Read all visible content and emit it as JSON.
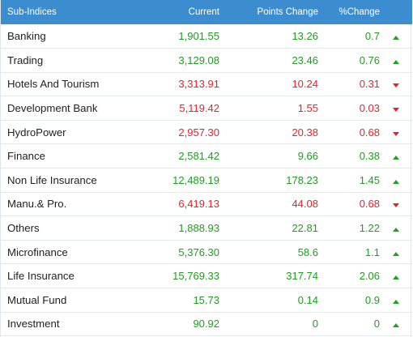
{
  "headers": {
    "name": "Sub-Indices",
    "current": "Current",
    "points": "Points Change",
    "pct": "%Change"
  },
  "colors": {
    "header_bg": "#3c8dcf",
    "up": "#1e9e1e",
    "down": "#e0242b"
  },
  "rows": [
    {
      "name": "Banking",
      "current": "1,901.55",
      "points": "13.26",
      "pct": "0.7",
      "trend": "up"
    },
    {
      "name": "Trading",
      "current": "3,129.08",
      "points": "23.46",
      "pct": "0.76",
      "trend": "up"
    },
    {
      "name": "Hotels And Tourism",
      "current": "3,313.91",
      "points": "10.24",
      "pct": "0.31",
      "trend": "down"
    },
    {
      "name": "Development Bank",
      "current": "5,119.42",
      "points": "1.55",
      "pct": "0.03",
      "trend": "down"
    },
    {
      "name": "HydroPower",
      "current": "2,957.30",
      "points": "20.38",
      "pct": "0.68",
      "trend": "down"
    },
    {
      "name": "Finance",
      "current": "2,581.42",
      "points": "9.66",
      "pct": "0.38",
      "trend": "up"
    },
    {
      "name": "Non Life Insurance",
      "current": "12,489.19",
      "points": "178.23",
      "pct": "1.45",
      "trend": "up"
    },
    {
      "name": "Manu.& Pro.",
      "current": "6,419.13",
      "points": "44.08",
      "pct": "0.68",
      "trend": "down"
    },
    {
      "name": "Others",
      "current": "1,888.93",
      "points": "22.81",
      "pct": "1.22",
      "trend": "up"
    },
    {
      "name": "Microfinance",
      "current": "5,376.30",
      "points": "58.6",
      "pct": "1.1",
      "trend": "up"
    },
    {
      "name": "Life Insurance",
      "current": "15,769.33",
      "points": "317.74",
      "pct": "2.06",
      "trend": "up"
    },
    {
      "name": "Mutual Fund",
      "current": "15.73",
      "points": "0.14",
      "pct": "0.9",
      "trend": "up"
    },
    {
      "name": "Investment",
      "current": "90.92",
      "points": "0",
      "pct": "0",
      "trend": "up"
    }
  ]
}
